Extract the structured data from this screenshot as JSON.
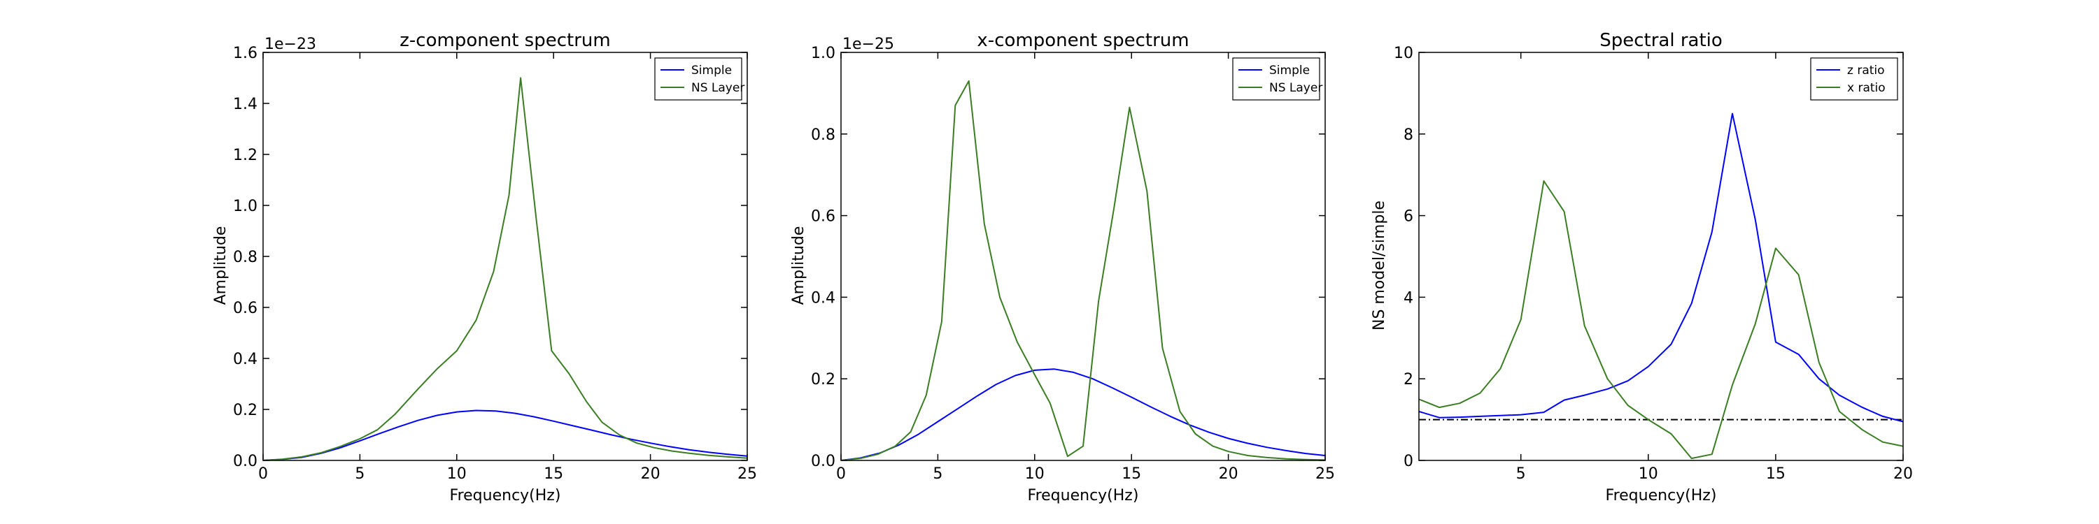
{
  "figure": {
    "background": "#ffffff"
  },
  "chart_data": [
    {
      "type": "line",
      "title": "z-component spectrum",
      "xlabel": "Frequency(Hz)",
      "ylabel": "Amplitude",
      "offset_text": "1e−23",
      "xlim": [
        0,
        25
      ],
      "ylim": [
        0,
        1.6
      ],
      "xticks": [
        0,
        5,
        10,
        15,
        20,
        25
      ],
      "xtick_labels": [
        "0",
        "5",
        "10",
        "15",
        "20",
        "25"
      ],
      "yticks": [
        0,
        0.2,
        0.4,
        0.6,
        0.8,
        1.0,
        1.2,
        1.4,
        1.6
      ],
      "ytick_labels": [
        "0.0",
        "0.2",
        "0.4",
        "0.6",
        "0.8",
        "1.0",
        "1.2",
        "1.4",
        "1.6"
      ],
      "grid": false,
      "legend": "top-right",
      "series": [
        {
          "name": "Simple",
          "color": "#0000ff",
          "x": [
            0,
            1,
            2,
            3,
            4,
            5,
            6,
            7,
            8,
            9,
            10,
            11,
            12,
            13,
            14,
            15,
            16,
            17,
            18,
            19,
            20,
            21,
            22,
            23,
            24,
            25
          ],
          "y": [
            0,
            0.004,
            0.012,
            0.028,
            0.05,
            0.077,
            0.105,
            0.132,
            0.157,
            0.177,
            0.19,
            0.196,
            0.194,
            0.185,
            0.171,
            0.154,
            0.136,
            0.118,
            0.1,
            0.083,
            0.068,
            0.054,
            0.042,
            0.032,
            0.024,
            0.017
          ]
        },
        {
          "name": "NS Layer",
          "color": "#3a7d22",
          "x": [
            0,
            1,
            2,
            3,
            4,
            5,
            5.9,
            6.8,
            8,
            9,
            10,
            11,
            11.9,
            12.7,
            13.3,
            14.1,
            14.9,
            15.8,
            16.7,
            17.5,
            18.4,
            19.3,
            20.2,
            21.1,
            22,
            23,
            24,
            25
          ],
          "y": [
            0,
            0.005,
            0.014,
            0.03,
            0.055,
            0.085,
            0.12,
            0.18,
            0.28,
            0.36,
            0.43,
            0.55,
            0.74,
            1.04,
            1.5,
            0.95,
            0.43,
            0.34,
            0.23,
            0.15,
            0.1,
            0.068,
            0.05,
            0.037,
            0.028,
            0.02,
            0.014,
            0.009
          ]
        }
      ]
    },
    {
      "type": "line",
      "title": "x-component spectrum",
      "xlabel": "Frequency(Hz)",
      "ylabel": "Amplitude",
      "offset_text": "1e−25",
      "xlim": [
        0,
        25
      ],
      "ylim": [
        0,
        1.0
      ],
      "xticks": [
        0,
        5,
        10,
        15,
        20,
        25
      ],
      "xtick_labels": [
        "0",
        "5",
        "10",
        "15",
        "20",
        "25"
      ],
      "yticks": [
        0,
        0.2,
        0.4,
        0.6,
        0.8,
        1.0
      ],
      "ytick_labels": [
        "0.0",
        "0.2",
        "0.4",
        "0.6",
        "0.8",
        "1.0"
      ],
      "grid": false,
      "legend": "top-right",
      "series": [
        {
          "name": "Simple",
          "color": "#0000ff",
          "x": [
            0,
            1,
            2,
            3,
            4,
            5,
            6,
            7,
            8,
            9,
            10,
            11,
            12,
            13,
            14,
            15,
            16,
            17,
            18,
            19,
            20,
            21,
            22,
            23,
            24,
            25
          ],
          "y": [
            0,
            0.006,
            0.018,
            0.038,
            0.064,
            0.095,
            0.126,
            0.157,
            0.186,
            0.208,
            0.221,
            0.224,
            0.216,
            0.2,
            0.178,
            0.155,
            0.131,
            0.108,
            0.087,
            0.069,
            0.054,
            0.042,
            0.032,
            0.024,
            0.017,
            0.012
          ]
        },
        {
          "name": "NS Layer",
          "color": "#3a7d22",
          "x": [
            0,
            1,
            1.9,
            2.8,
            3.6,
            4.4,
            5.2,
            5.9,
            6.6,
            7.4,
            8.2,
            9.1,
            10,
            10.8,
            11.7,
            12.5,
            13.3,
            14.1,
            14.9,
            15.8,
            16.6,
            17.5,
            18.3,
            19.2,
            20,
            21,
            22,
            23,
            24,
            25
          ],
          "y": [
            0,
            0.005,
            0.015,
            0.035,
            0.07,
            0.16,
            0.34,
            0.87,
            0.93,
            0.58,
            0.4,
            0.29,
            0.21,
            0.14,
            0.01,
            0.035,
            0.39,
            0.62,
            0.865,
            0.66,
            0.275,
            0.12,
            0.065,
            0.035,
            0.022,
            0.012,
            0.007,
            0.004,
            0.002,
            0.001
          ]
        }
      ]
    },
    {
      "type": "line",
      "title": "Spectral ratio",
      "xlabel": "Frequency(Hz)",
      "ylabel": "NS model/simple",
      "xlim": [
        1,
        20
      ],
      "ylim": [
        0,
        10
      ],
      "xticks": [
        5,
        10,
        15,
        20
      ],
      "xtick_labels": [
        "5",
        "10",
        "15",
        "20"
      ],
      "yticks": [
        0,
        2,
        4,
        6,
        8,
        10
      ],
      "ytick_labels": [
        "0",
        "2",
        "4",
        "6",
        "8",
        "10"
      ],
      "grid": false,
      "legend": "top-right",
      "reference_line": {
        "y": 1,
        "color": "#000000",
        "style": "dash-dot"
      },
      "series": [
        {
          "name": "z ratio",
          "color": "#0000ff",
          "x": [
            1,
            1.8,
            2.6,
            3.4,
            4.2,
            5,
            5.9,
            6.7,
            7.5,
            8.4,
            9.2,
            10,
            10.9,
            11.7,
            12.5,
            13.3,
            14.2,
            15,
            15.9,
            16.7,
            17.5,
            18.4,
            19.2,
            20
          ],
          "y": [
            1.2,
            1.05,
            1.06,
            1.08,
            1.1,
            1.12,
            1.18,
            1.48,
            1.6,
            1.75,
            1.95,
            2.3,
            2.85,
            3.85,
            5.6,
            8.5,
            5.9,
            2.9,
            2.6,
            2.0,
            1.6,
            1.3,
            1.08,
            0.95
          ]
        },
        {
          "name": "x ratio",
          "color": "#3a7d22",
          "x": [
            1,
            1.8,
            2.6,
            3.4,
            4.2,
            5,
            5.9,
            6.7,
            7.5,
            8.4,
            9.2,
            10,
            10.9,
            11.7,
            12.5,
            13.3,
            14.2,
            15,
            15.9,
            16.7,
            17.5,
            18.4,
            19.2,
            20
          ],
          "y": [
            1.5,
            1.3,
            1.4,
            1.65,
            2.25,
            3.45,
            6.85,
            6.1,
            3.3,
            2.0,
            1.35,
            1.0,
            0.65,
            0.05,
            0.15,
            1.85,
            3.35,
            5.2,
            4.55,
            2.4,
            1.2,
            0.75,
            0.45,
            0.35
          ]
        }
      ]
    }
  ]
}
